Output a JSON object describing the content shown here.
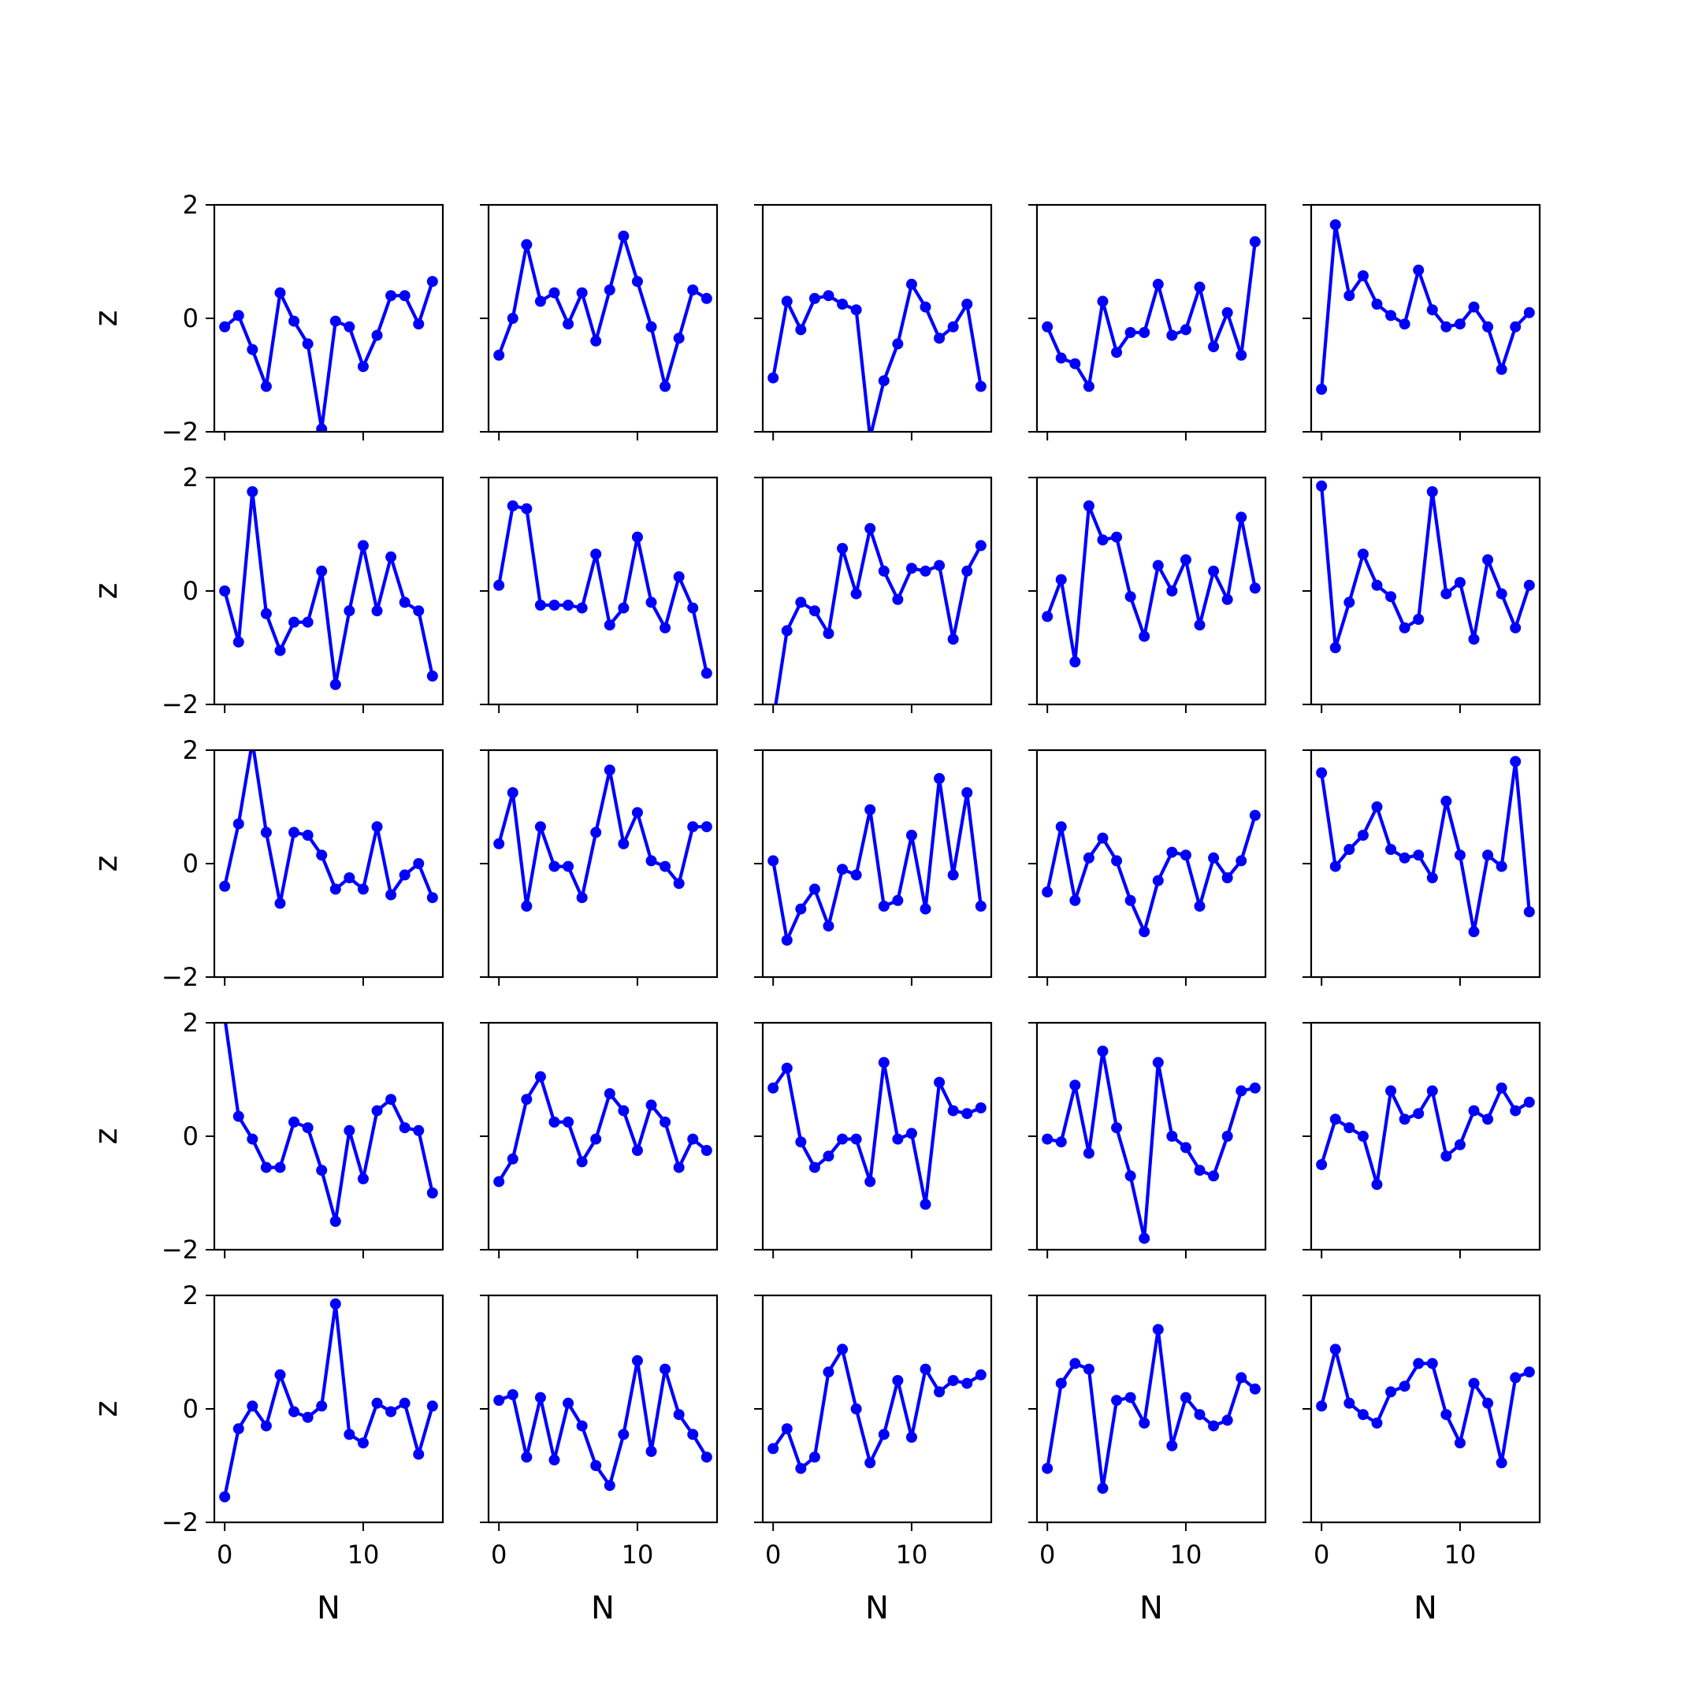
{
  "figure": {
    "xlabel": "N",
    "ylabel": "z",
    "line_color": "#0000ff"
  },
  "chart_data": [
    {
      "type": "line",
      "xlabel": "",
      "ylabel": "z",
      "ylim": [
        -2,
        2
      ],
      "xlim": [
        -0.75,
        15.75
      ],
      "x": [
        0,
        1,
        2,
        3,
        4,
        5,
        6,
        7,
        8,
        9,
        10,
        11,
        12,
        13,
        14,
        15
      ],
      "xticks": [
        "0",
        "10"
      ],
      "yticks": [
        "−2",
        "0",
        "2"
      ],
      "series": [
        {
          "values": [
            -0.15,
            0.05,
            -0.55,
            -1.2,
            0.45,
            -0.05,
            -0.45,
            -1.95,
            -0.05,
            -0.15,
            -0.85,
            -0.3,
            0.4,
            0.4,
            -0.1,
            0.65
          ]
        }
      ]
    },
    {
      "type": "line",
      "xlabel": "",
      "ylabel": "",
      "ylim": [
        -2,
        2
      ],
      "xlim": [
        -0.75,
        15.75
      ],
      "x": [
        0,
        1,
        2,
        3,
        4,
        5,
        6,
        7,
        8,
        9,
        10,
        11,
        12,
        13,
        14,
        15
      ],
      "series": [
        {
          "values": [
            -0.65,
            0.0,
            1.3,
            0.3,
            0.45,
            -0.1,
            0.45,
            -0.4,
            0.5,
            1.45,
            0.65,
            -0.15,
            -1.2,
            -0.35,
            0.5,
            0.35
          ]
        }
      ]
    },
    {
      "type": "line",
      "xlabel": "",
      "ylabel": "",
      "ylim": [
        -2,
        2
      ],
      "xlim": [
        -0.75,
        15.75
      ],
      "x": [
        0,
        1,
        2,
        3,
        4,
        5,
        6,
        7,
        8,
        9,
        10,
        11,
        12,
        13,
        14,
        15
      ],
      "series": [
        {
          "values": [
            -1.05,
            0.3,
            -0.2,
            0.35,
            0.4,
            0.25,
            0.15,
            -2.1,
            -1.1,
            -0.45,
            0.6,
            0.2,
            -0.35,
            -0.15,
            0.25,
            -1.2
          ]
        }
      ]
    },
    {
      "type": "line",
      "xlabel": "",
      "ylabel": "",
      "ylim": [
        -2,
        2
      ],
      "xlim": [
        -0.75,
        15.75
      ],
      "x": [
        0,
        1,
        2,
        3,
        4,
        5,
        6,
        7,
        8,
        9,
        10,
        11,
        12,
        13,
        14,
        15
      ],
      "series": [
        {
          "values": [
            -0.15,
            -0.7,
            -0.8,
            -1.2,
            0.3,
            -0.6,
            -0.25,
            -0.25,
            0.6,
            -0.3,
            -0.2,
            0.55,
            -0.5,
            0.1,
            -0.65,
            1.35
          ]
        }
      ]
    },
    {
      "type": "line",
      "xlabel": "",
      "ylabel": "",
      "ylim": [
        -2,
        2
      ],
      "xlim": [
        -0.75,
        15.75
      ],
      "x": [
        0,
        1,
        2,
        3,
        4,
        5,
        6,
        7,
        8,
        9,
        10,
        11,
        12,
        13,
        14,
        15
      ],
      "series": [
        {
          "values": [
            -1.25,
            1.65,
            0.4,
            0.75,
            0.25,
            0.05,
            -0.1,
            0.85,
            0.15,
            -0.15,
            -0.1,
            0.2,
            -0.15,
            -0.9,
            -0.15,
            0.1
          ]
        }
      ]
    },
    {
      "type": "line",
      "xlabel": "",
      "ylabel": "z",
      "ylim": [
        -2,
        2
      ],
      "xlim": [
        -0.75,
        15.75
      ],
      "x": [
        0,
        1,
        2,
        3,
        4,
        5,
        6,
        7,
        8,
        9,
        10,
        11,
        12,
        13,
        14,
        15
      ],
      "xticks": [
        "0",
        "10"
      ],
      "yticks": [
        "−2",
        "0",
        "2"
      ],
      "series": [
        {
          "values": [
            0.0,
            -0.9,
            1.75,
            -0.4,
            -1.05,
            -0.55,
            -0.55,
            0.35,
            -1.65,
            -0.35,
            0.8,
            -0.35,
            0.6,
            -0.2,
            -0.35,
            -1.5
          ]
        }
      ]
    },
    {
      "type": "line",
      "xlabel": "",
      "ylabel": "",
      "ylim": [
        -2,
        2
      ],
      "xlim": [
        -0.75,
        15.75
      ],
      "x": [
        0,
        1,
        2,
        3,
        4,
        5,
        6,
        7,
        8,
        9,
        10,
        11,
        12,
        13,
        14,
        15
      ],
      "series": [
        {
          "values": [
            0.1,
            1.5,
            1.45,
            -0.25,
            -0.25,
            -0.25,
            -0.3,
            0.65,
            -0.6,
            -0.3,
            0.95,
            -0.2,
            -0.65,
            0.25,
            -0.3,
            -1.45
          ]
        }
      ]
    },
    {
      "type": "line",
      "xlabel": "",
      "ylabel": "",
      "ylim": [
        -2,
        2
      ],
      "xlim": [
        -0.75,
        15.75
      ],
      "x": [
        0,
        1,
        2,
        3,
        4,
        5,
        6,
        7,
        8,
        9,
        10,
        11,
        12,
        13,
        14,
        15
      ],
      "series": [
        {
          "values": [
            -2.3,
            -0.7,
            -0.2,
            -0.35,
            -0.75,
            0.75,
            -0.05,
            1.1,
            0.35,
            -0.15,
            0.4,
            0.35,
            0.45,
            -0.85,
            0.35,
            0.8
          ]
        }
      ]
    },
    {
      "type": "line",
      "xlabel": "",
      "ylabel": "",
      "ylim": [
        -2,
        2
      ],
      "xlim": [
        -0.75,
        15.75
      ],
      "x": [
        0,
        1,
        2,
        3,
        4,
        5,
        6,
        7,
        8,
        9,
        10,
        11,
        12,
        13,
        14,
        15
      ],
      "series": [
        {
          "values": [
            -0.45,
            0.2,
            -1.25,
            1.5,
            0.9,
            0.95,
            -0.1,
            -0.8,
            0.45,
            0.0,
            0.55,
            -0.6,
            0.35,
            -0.15,
            1.3,
            0.05
          ]
        }
      ]
    },
    {
      "type": "line",
      "xlabel": "",
      "ylabel": "",
      "ylim": [
        -2,
        2
      ],
      "xlim": [
        -0.75,
        15.75
      ],
      "x": [
        0,
        1,
        2,
        3,
        4,
        5,
        6,
        7,
        8,
        9,
        10,
        11,
        12,
        13,
        14,
        15
      ],
      "series": [
        {
          "values": [
            1.85,
            -1.0,
            -0.2,
            0.65,
            0.1,
            -0.1,
            -0.65,
            -0.5,
            1.75,
            -0.05,
            0.15,
            -0.85,
            0.55,
            -0.05,
            -0.65,
            0.1
          ]
        }
      ]
    },
    {
      "type": "line",
      "xlabel": "",
      "ylabel": "z",
      "ylim": [
        -2,
        2
      ],
      "xlim": [
        -0.75,
        15.75
      ],
      "x": [
        0,
        1,
        2,
        3,
        4,
        5,
        6,
        7,
        8,
        9,
        10,
        11,
        12,
        13,
        14,
        15
      ],
      "xticks": [
        "0",
        "10"
      ],
      "yticks": [
        "−2",
        "0",
        "2"
      ],
      "series": [
        {
          "values": [
            -0.4,
            0.7,
            2.15,
            0.55,
            -0.7,
            0.55,
            0.5,
            0.15,
            -0.45,
            -0.25,
            -0.45,
            0.65,
            -0.55,
            -0.2,
            0.0,
            -0.6
          ]
        }
      ]
    },
    {
      "type": "line",
      "xlabel": "",
      "ylabel": "",
      "ylim": [
        -2,
        2
      ],
      "xlim": [
        -0.75,
        15.75
      ],
      "x": [
        0,
        1,
        2,
        3,
        4,
        5,
        6,
        7,
        8,
        9,
        10,
        11,
        12,
        13,
        14,
        15
      ],
      "series": [
        {
          "values": [
            0.35,
            1.25,
            -0.75,
            0.65,
            -0.05,
            -0.05,
            -0.6,
            0.55,
            1.65,
            0.35,
            0.9,
            0.05,
            -0.05,
            -0.35,
            0.65,
            0.65
          ]
        }
      ]
    },
    {
      "type": "line",
      "xlabel": "",
      "ylabel": "",
      "ylim": [
        -2,
        2
      ],
      "xlim": [
        -0.75,
        15.75
      ],
      "x": [
        0,
        1,
        2,
        3,
        4,
        5,
        6,
        7,
        8,
        9,
        10,
        11,
        12,
        13,
        14,
        15
      ],
      "series": [
        {
          "values": [
            0.05,
            -1.35,
            -0.8,
            -0.45,
            -1.1,
            -0.1,
            -0.2,
            0.95,
            -0.75,
            -0.65,
            0.5,
            -0.8,
            1.5,
            -0.2,
            1.25,
            -0.75
          ]
        }
      ]
    },
    {
      "type": "line",
      "xlabel": "",
      "ylabel": "",
      "ylim": [
        -2,
        2
      ],
      "xlim": [
        -0.75,
        15.75
      ],
      "x": [
        0,
        1,
        2,
        3,
        4,
        5,
        6,
        7,
        8,
        9,
        10,
        11,
        12,
        13,
        14,
        15
      ],
      "series": [
        {
          "values": [
            -0.5,
            0.65,
            -0.65,
            0.1,
            0.45,
            0.05,
            -0.65,
            -1.2,
            -0.3,
            0.2,
            0.15,
            -0.75,
            0.1,
            -0.25,
            0.05,
            0.85
          ]
        }
      ]
    },
    {
      "type": "line",
      "xlabel": "",
      "ylabel": "",
      "ylim": [
        -2,
        2
      ],
      "xlim": [
        -0.75,
        15.75
      ],
      "x": [
        0,
        1,
        2,
        3,
        4,
        5,
        6,
        7,
        8,
        9,
        10,
        11,
        12,
        13,
        14,
        15
      ],
      "series": [
        {
          "values": [
            1.6,
            -0.05,
            0.25,
            0.5,
            1.0,
            0.25,
            0.1,
            0.15,
            -0.25,
            1.1,
            0.15,
            -1.2,
            0.15,
            -0.05,
            1.8,
            -0.85
          ]
        }
      ]
    },
    {
      "type": "line",
      "xlabel": "",
      "ylabel": "z",
      "ylim": [
        -2,
        2
      ],
      "xlim": [
        -0.75,
        15.75
      ],
      "x": [
        0,
        1,
        2,
        3,
        4,
        5,
        6,
        7,
        8,
        9,
        10,
        11,
        12,
        13,
        14,
        15
      ],
      "xticks": [
        "0",
        "10"
      ],
      "yticks": [
        "−2",
        "0",
        "2"
      ],
      "series": [
        {
          "values": [
            2.1,
            0.35,
            -0.05,
            -0.55,
            -0.55,
            0.25,
            0.15,
            -0.6,
            -1.5,
            0.1,
            -0.75,
            0.45,
            0.65,
            0.15,
            0.1,
            -1.0
          ]
        }
      ]
    },
    {
      "type": "line",
      "xlabel": "",
      "ylabel": "",
      "ylim": [
        -2,
        2
      ],
      "xlim": [
        -0.75,
        15.75
      ],
      "x": [
        0,
        1,
        2,
        3,
        4,
        5,
        6,
        7,
        8,
        9,
        10,
        11,
        12,
        13,
        14,
        15
      ],
      "series": [
        {
          "values": [
            -0.8,
            -0.4,
            0.65,
            1.05,
            0.25,
            0.25,
            -0.45,
            -0.05,
            0.75,
            0.45,
            -0.25,
            0.55,
            0.25,
            -0.55,
            -0.05,
            -0.25
          ]
        }
      ]
    },
    {
      "type": "line",
      "xlabel": "",
      "ylabel": "",
      "ylim": [
        -2,
        2
      ],
      "xlim": [
        -0.75,
        15.75
      ],
      "x": [
        0,
        1,
        2,
        3,
        4,
        5,
        6,
        7,
        8,
        9,
        10,
        11,
        12,
        13,
        14,
        15
      ],
      "series": [
        {
          "values": [
            0.85,
            1.2,
            -0.1,
            -0.55,
            -0.35,
            -0.05,
            -0.05,
            -0.8,
            1.3,
            -0.05,
            0.05,
            -1.2,
            0.95,
            0.45,
            0.4,
            0.5
          ]
        }
      ]
    },
    {
      "type": "line",
      "xlabel": "",
      "ylabel": "",
      "ylim": [
        -2,
        2
      ],
      "xlim": [
        -0.75,
        15.75
      ],
      "x": [
        0,
        1,
        2,
        3,
        4,
        5,
        6,
        7,
        8,
        9,
        10,
        11,
        12,
        13,
        14,
        15
      ],
      "series": [
        {
          "values": [
            -0.05,
            -0.1,
            0.9,
            -0.3,
            1.5,
            0.15,
            -0.7,
            -1.8,
            1.3,
            0.0,
            -0.2,
            -0.6,
            -0.7,
            0.0,
            0.8,
            0.85
          ]
        }
      ]
    },
    {
      "type": "line",
      "xlabel": "",
      "ylabel": "",
      "ylim": [
        -2,
        2
      ],
      "xlim": [
        -0.75,
        15.75
      ],
      "x": [
        0,
        1,
        2,
        3,
        4,
        5,
        6,
        7,
        8,
        9,
        10,
        11,
        12,
        13,
        14,
        15
      ],
      "series": [
        {
          "values": [
            -0.5,
            0.3,
            0.15,
            0.0,
            -0.85,
            0.8,
            0.3,
            0.4,
            0.8,
            -0.35,
            -0.15,
            0.45,
            0.3,
            0.85,
            0.45,
            0.6
          ]
        }
      ]
    },
    {
      "type": "line",
      "xlabel": "N",
      "ylabel": "z",
      "ylim": [
        -2,
        2
      ],
      "xlim": [
        -0.75,
        15.75
      ],
      "x": [
        0,
        1,
        2,
        3,
        4,
        5,
        6,
        7,
        8,
        9,
        10,
        11,
        12,
        13,
        14,
        15
      ],
      "xticks": [
        "0",
        "10"
      ],
      "yticks": [
        "−2",
        "0",
        "2"
      ],
      "series": [
        {
          "values": [
            -1.55,
            -0.35,
            0.05,
            -0.3,
            0.6,
            -0.05,
            -0.15,
            0.05,
            1.85,
            -0.45,
            -0.6,
            0.1,
            -0.05,
            0.1,
            -0.8,
            0.05
          ]
        }
      ]
    },
    {
      "type": "line",
      "xlabel": "N",
      "ylabel": "",
      "ylim": [
        -2,
        2
      ],
      "xlim": [
        -0.75,
        15.75
      ],
      "x": [
        0,
        1,
        2,
        3,
        4,
        5,
        6,
        7,
        8,
        9,
        10,
        11,
        12,
        13,
        14,
        15
      ],
      "xticks": [
        "0",
        "10"
      ],
      "series": [
        {
          "values": [
            0.15,
            0.25,
            -0.85,
            0.2,
            -0.9,
            0.1,
            -0.3,
            -1.0,
            -1.35,
            -0.45,
            0.85,
            -0.75,
            0.7,
            -0.1,
            -0.45,
            -0.85
          ]
        }
      ]
    },
    {
      "type": "line",
      "xlabel": "N",
      "ylabel": "",
      "ylim": [
        -2,
        2
      ],
      "xlim": [
        -0.75,
        15.75
      ],
      "x": [
        0,
        1,
        2,
        3,
        4,
        5,
        6,
        7,
        8,
        9,
        10,
        11,
        12,
        13,
        14,
        15
      ],
      "xticks": [
        "0",
        "10"
      ],
      "series": [
        {
          "values": [
            -0.7,
            -0.35,
            -1.05,
            -0.85,
            0.65,
            1.05,
            0.0,
            -0.95,
            -0.45,
            0.5,
            -0.5,
            0.7,
            0.3,
            0.5,
            0.45,
            0.6
          ]
        }
      ]
    },
    {
      "type": "line",
      "xlabel": "N",
      "ylabel": "",
      "ylim": [
        -2,
        2
      ],
      "xlim": [
        -0.75,
        15.75
      ],
      "x": [
        0,
        1,
        2,
        3,
        4,
        5,
        6,
        7,
        8,
        9,
        10,
        11,
        12,
        13,
        14,
        15
      ],
      "xticks": [
        "0",
        "10"
      ],
      "series": [
        {
          "values": [
            -1.05,
            0.45,
            0.8,
            0.7,
            -1.4,
            0.15,
            0.2,
            -0.25,
            1.4,
            -0.65,
            0.2,
            -0.1,
            -0.3,
            -0.2,
            0.55,
            0.35
          ]
        }
      ]
    },
    {
      "type": "line",
      "xlabel": "N",
      "ylabel": "",
      "ylim": [
        -2,
        2
      ],
      "xlim": [
        -0.75,
        15.75
      ],
      "x": [
        0,
        1,
        2,
        3,
        4,
        5,
        6,
        7,
        8,
        9,
        10,
        11,
        12,
        13,
        14,
        15
      ],
      "xticks": [
        "0",
        "10"
      ],
      "series": [
        {
          "values": [
            0.05,
            1.05,
            0.1,
            -0.1,
            -0.25,
            0.3,
            0.4,
            0.8,
            0.8,
            -0.1,
            -0.6,
            0.45,
            0.1,
            -0.95,
            0.55,
            0.65
          ]
        }
      ]
    }
  ]
}
